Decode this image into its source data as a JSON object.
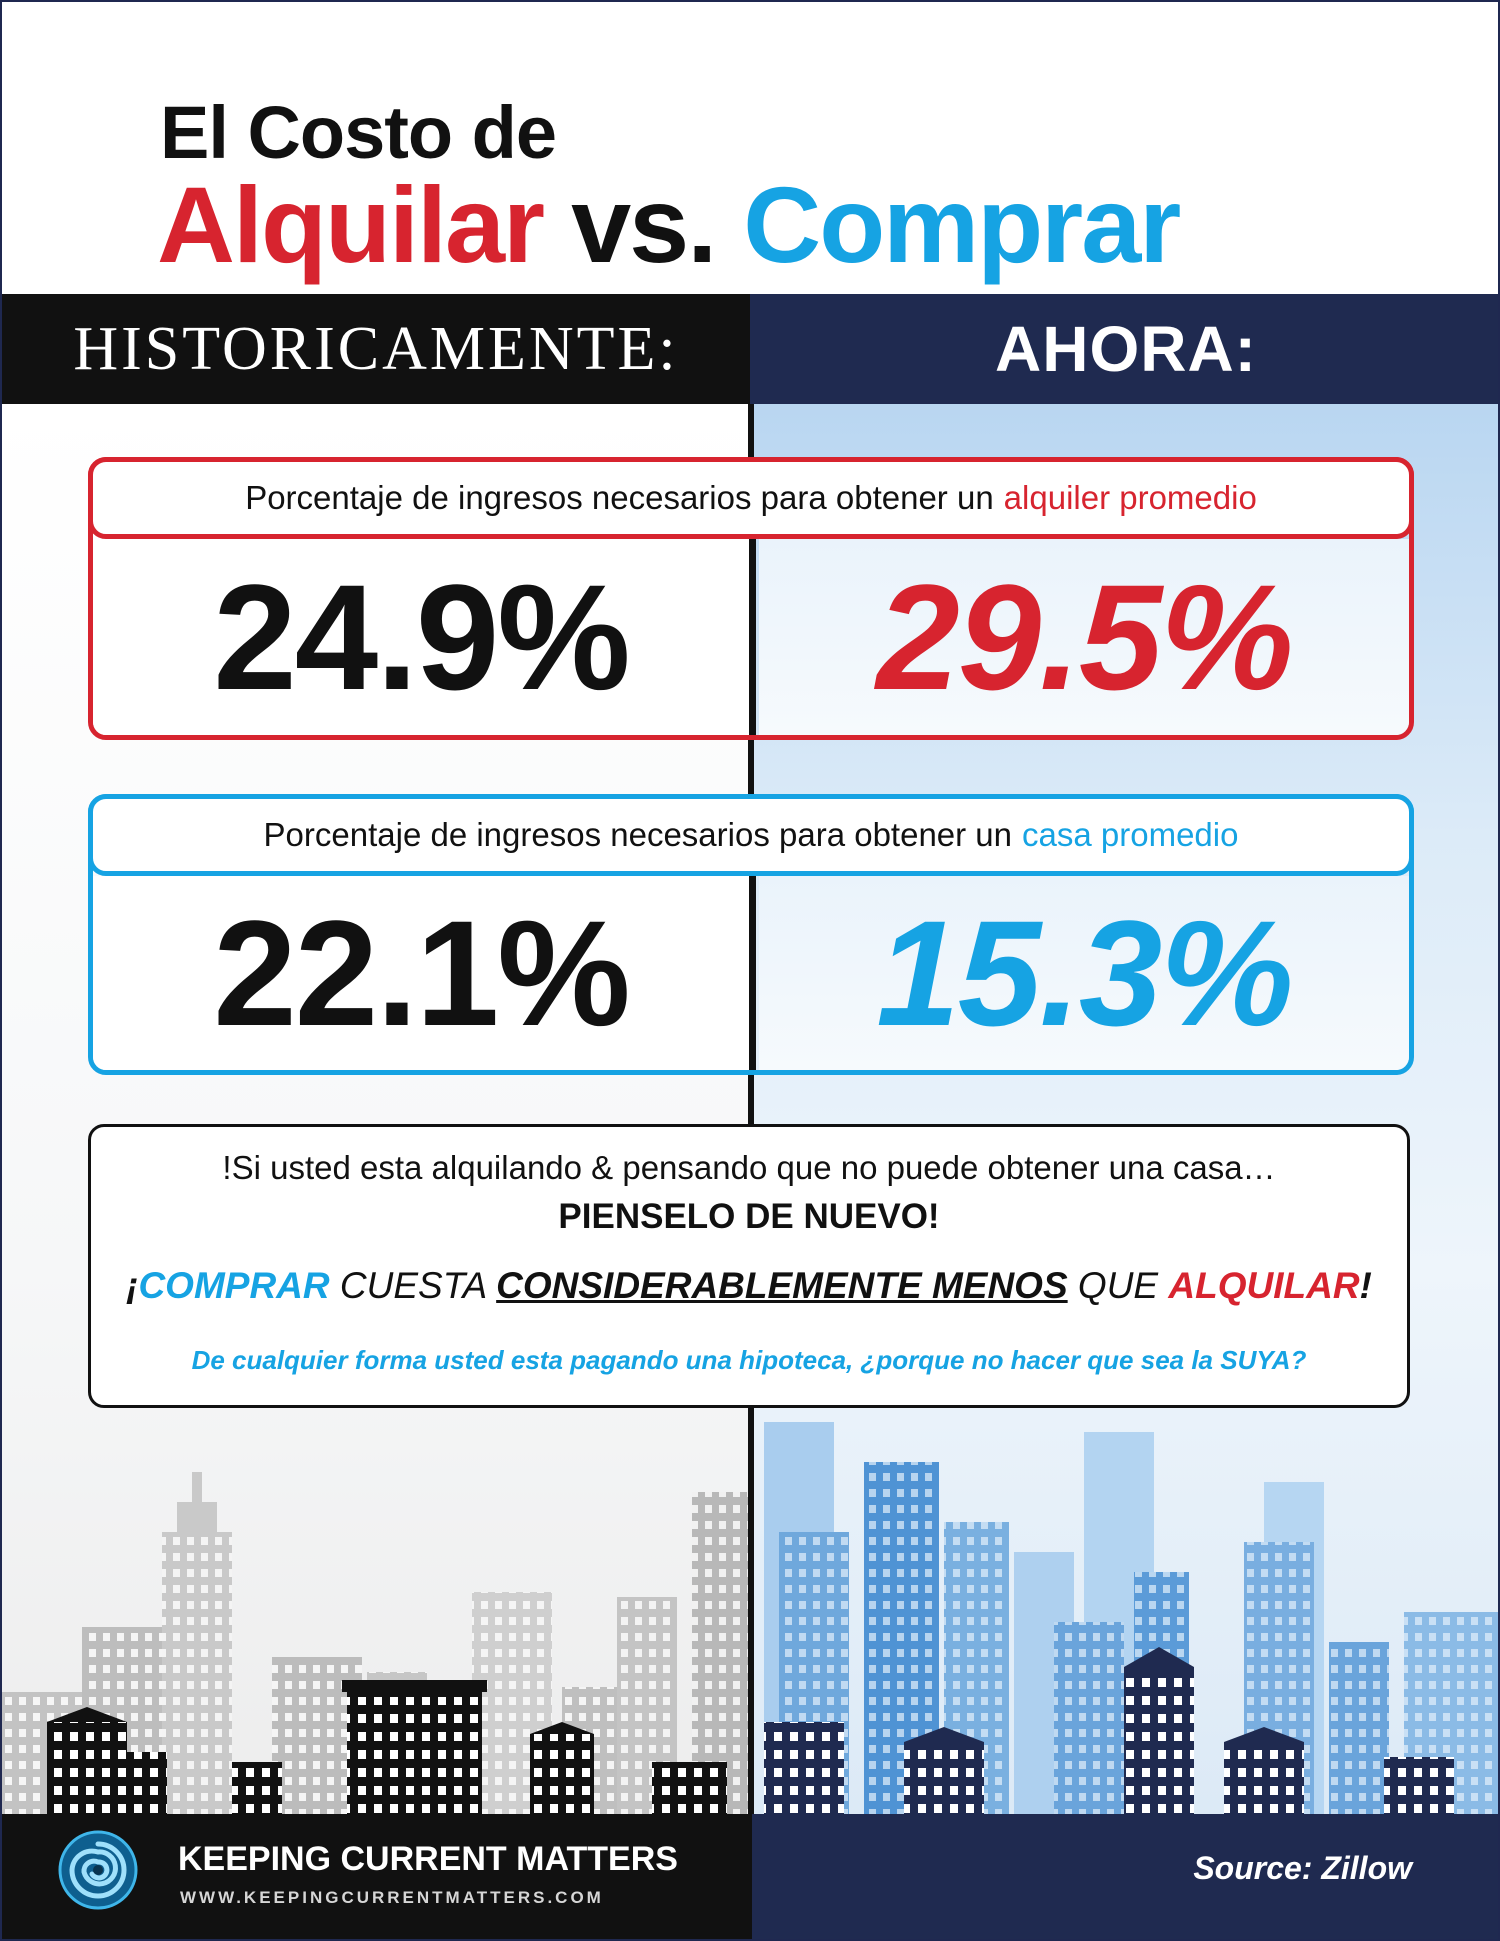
{
  "title": {
    "line1": "El Costo de",
    "rent_word": "Alquilar",
    "vs_word": "vs.",
    "buy_word": "Comprar"
  },
  "columns": {
    "left_header": "HISTORICAMENTE:",
    "right_header": "AHORA:"
  },
  "rent_box": {
    "label_prefix": "Porcentaje de ingresos necesarios para obtener un",
    "label_highlight": "alquiler promedio",
    "historic_value": "24.9%",
    "now_value": "29.5%"
  },
  "buy_box": {
    "label_prefix": "Porcentaje de ingresos necesarios para obtener un",
    "label_highlight": "casa promedio",
    "historic_value": "22.1%",
    "now_value": "15.3%"
  },
  "message": {
    "line1": "!Si usted esta alquilando & pensando que no puede obtener una casa…",
    "line2": "PIENSELO DE NUEVO!",
    "line3_open": "¡",
    "line3_buy": "COMPRAR",
    "line3_mid1": "CUESTA",
    "line3_emph": "CONSIDERABLEMENTE MENOS",
    "line3_mid2": "QUE",
    "line3_rent": "ALQUILAR",
    "line3_close": "!",
    "line4": "De cualquier forma usted esta pagando una hipoteca, ¿porque no hacer que sea la SUYA?"
  },
  "footer": {
    "brand": "KEEPING CURRENT MATTERS",
    "url": "WWW.KEEPINGCURRENTMATTERS.COM",
    "source": "Source: Zillow"
  },
  "colors": {
    "rent_red": "#d7242f",
    "buy_blue": "#16a3e3",
    "navy": "#1f2a50",
    "black": "#111111"
  },
  "icons": {
    "logo": "swirl-logo-icon",
    "skyline_left": "gray-city-skyline",
    "skyline_right": "blue-city-skyline"
  }
}
